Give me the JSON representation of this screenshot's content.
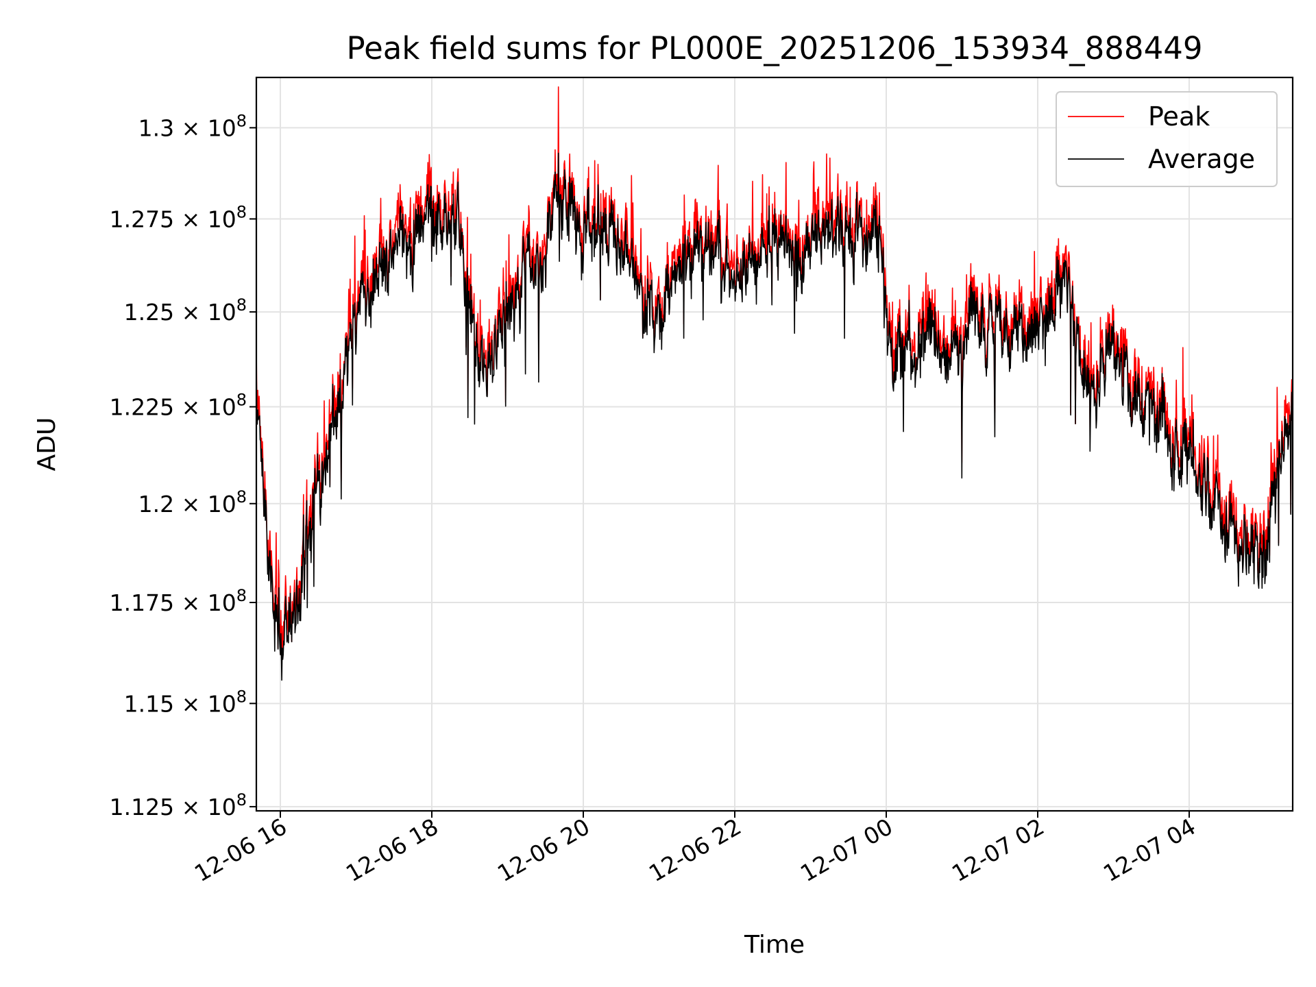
{
  "chart_data": {
    "type": "line",
    "title": "Peak field sums for PL000E_20251206_153934_888449",
    "xlabel": "Time",
    "ylabel": "ADU",
    "yscale": "log",
    "ylim": [
      112400000,
      131400000
    ],
    "xlim": [
      "2025-12-06 15:41",
      "2025-12-07 05:22"
    ],
    "grid": true,
    "legend_position": "top-right",
    "y_ticks": [
      {
        "value": 112500000,
        "mantissa": "1.125"
      },
      {
        "value": 115000000,
        "mantissa": "1.15"
      },
      {
        "value": 117500000,
        "mantissa": "1.175"
      },
      {
        "value": 120000000,
        "mantissa": "1.2"
      },
      {
        "value": 122500000,
        "mantissa": "1.225"
      },
      {
        "value": 125000000,
        "mantissa": "1.25"
      },
      {
        "value": 127500000,
        "mantissa": "1.275"
      },
      {
        "value": 130000000,
        "mantissa": "1.3"
      }
    ],
    "y_tick_multiplier": "× 10",
    "y_tick_exponent": "8",
    "x_ticks": [
      {
        "value": "2025-12-06 16:00",
        "label": "12-06 16"
      },
      {
        "value": "2025-12-06 18:00",
        "label": "12-06 18"
      },
      {
        "value": "2025-12-06 20:00",
        "label": "12-06 20"
      },
      {
        "value": "2025-12-06 22:00",
        "label": "12-06 22"
      },
      {
        "value": "2025-12-07 00:00",
        "label": "12-07 00"
      },
      {
        "value": "2025-12-07 02:00",
        "label": "12-07 02"
      },
      {
        "value": "2025-12-07 04:00",
        "label": "12-07 04"
      }
    ],
    "series": [
      {
        "name": "Peak",
        "color": "#ff0000"
      },
      {
        "name": "Average",
        "color": "#000000"
      }
    ],
    "average_trend": {
      "x": [
        "2025-12-06 15:41",
        "2025-12-06 15:50",
        "2025-12-06 16:00",
        "2025-12-06 16:15",
        "2025-12-06 16:30",
        "2025-12-06 16:45",
        "2025-12-06 17:00",
        "2025-12-06 17:15",
        "2025-12-06 17:30",
        "2025-12-06 17:45",
        "2025-12-06 18:00",
        "2025-12-06 18:20",
        "2025-12-06 18:40",
        "2025-12-06 19:00",
        "2025-12-06 19:20",
        "2025-12-06 19:40",
        "2025-12-06 20:00",
        "2025-12-06 20:30",
        "2025-12-06 21:00",
        "2025-12-06 21:20",
        "2025-12-06 21:40",
        "2025-12-06 22:00",
        "2025-12-06 22:30",
        "2025-12-06 23:00",
        "2025-12-06 23:30",
        "2025-12-06 23:55",
        "2025-12-07 00:05",
        "2025-12-07 00:30",
        "2025-12-07 01:00",
        "2025-12-07 01:30",
        "2025-12-07 02:00",
        "2025-12-07 02:20",
        "2025-12-07 02:40",
        "2025-12-07 03:00",
        "2025-12-07 03:20",
        "2025-12-07 03:40",
        "2025-12-07 04:00",
        "2025-12-07 04:20",
        "2025-12-07 04:40",
        "2025-12-07 05:00",
        "2025-12-07 05:22"
      ],
      "y": [
        123000000,
        118500000,
        116500000,
        118000000,
        120500000,
        122500000,
        124500000,
        126200000,
        126600000,
        126900000,
        127600000,
        127300000,
        123200000,
        124500000,
        126000000,
        128000000,
        127700000,
        126800000,
        124800000,
        126300000,
        126900000,
        126100000,
        126700000,
        126600000,
        126800000,
        126500000,
        123800000,
        124200000,
        124000000,
        124500000,
        124300000,
        126000000,
        122800000,
        124500000,
        122700000,
        122000000,
        121300000,
        120100000,
        119600000,
        119200000,
        122200000
      ]
    }
  }
}
